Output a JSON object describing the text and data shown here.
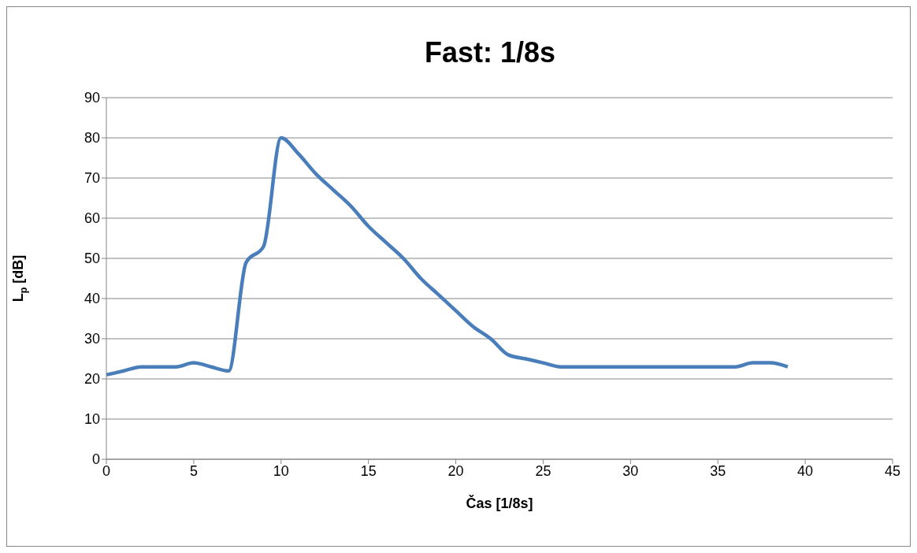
{
  "chart_data": {
    "type": "line",
    "title": "Fast: 1/8s",
    "xlabel": "Čas [1/8s]",
    "ylabel": "L$_{p}$ [dB]",
    "x": [
      0,
      1,
      2,
      3,
      4,
      5,
      6,
      7,
      8,
      9,
      10,
      11,
      12,
      13,
      14,
      15,
      16,
      17,
      18,
      19,
      20,
      21,
      22,
      23,
      24,
      25,
      26,
      27,
      28,
      29,
      30,
      31,
      32,
      33,
      34,
      35,
      36,
      37,
      38,
      39
    ],
    "series": [
      {
        "color": "#4a7ebb",
        "values": [
          21,
          22,
          23,
          23,
          23,
          24,
          23,
          22,
          49,
          53,
          80,
          76,
          71,
          67,
          63,
          58,
          54,
          50,
          45,
          41,
          37,
          33,
          30,
          26,
          25,
          24,
          23,
          23,
          23,
          23,
          23,
          23,
          23,
          23,
          23,
          23,
          23,
          24,
          24,
          23
        ]
      }
    ],
    "xlim": [
      0,
      45
    ],
    "xticks": [
      0,
      5,
      10,
      15,
      20,
      25,
      30,
      35,
      40,
      45
    ],
    "ylim": [
      0,
      90
    ],
    "yticks": [
      0,
      10,
      20,
      30,
      40,
      50,
      60,
      70,
      80,
      90
    ],
    "grid": "y",
    "legend": false,
    "marker": "none",
    "line_style": "solid"
  }
}
